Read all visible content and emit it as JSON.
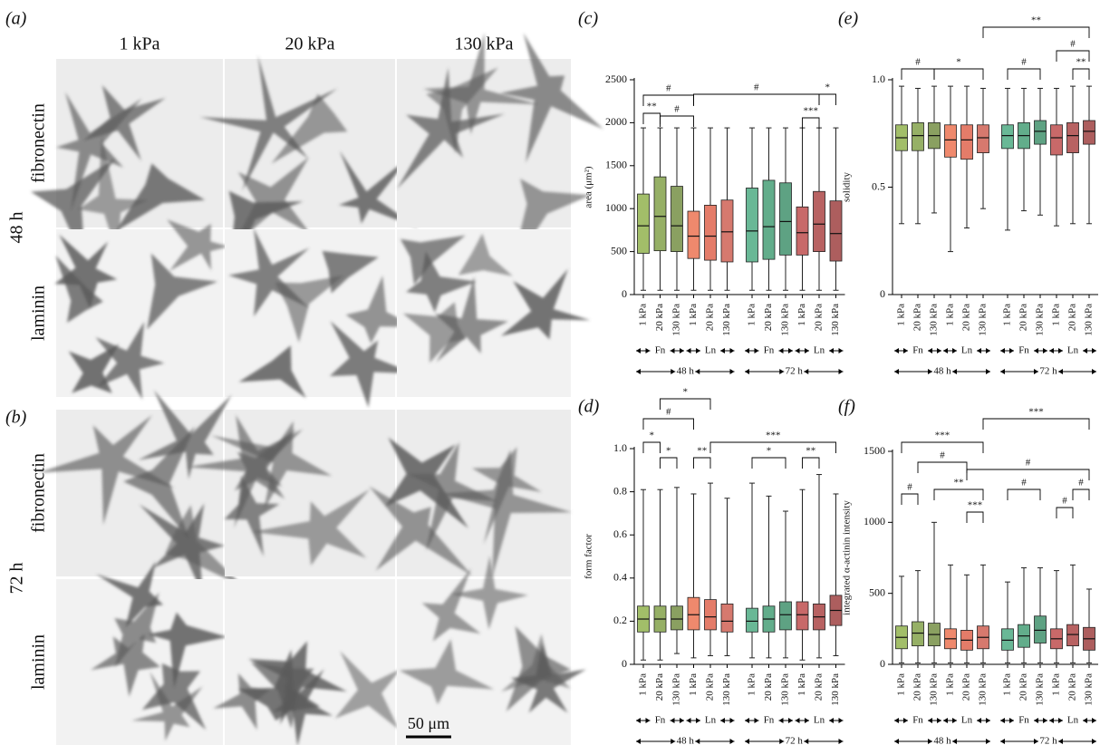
{
  "micrographs": {
    "columns": [
      "1 kPa",
      "20 kPa",
      "130 kPa"
    ],
    "panels": [
      {
        "label": "(a)",
        "time": "48 h",
        "rows": [
          "fibronectin",
          "laminin"
        ]
      },
      {
        "label": "(b)",
        "time": "72 h",
        "rows": [
          "fibronectin",
          "laminin"
        ]
      }
    ],
    "scale_bar": "50 μm"
  },
  "chart_data": [
    {
      "type": "box",
      "label": "(c)",
      "ylabel": "area (μm²)",
      "categories": [
        "1 kPa",
        "20 kPa",
        "130 kPa",
        "1 kPa",
        "20 kPa",
        "130 kPa",
        "1 kPa",
        "20 kPa",
        "130 kPa",
        "1 kPa",
        "20 kPa",
        "130 kPa"
      ],
      "groups": [
        "Fn",
        "Ln",
        "Fn",
        "Ln"
      ],
      "periods": [
        "48 h",
        "72 h"
      ],
      "colors": [
        "#7aa32a",
        "#6a8f25",
        "#58781e",
        "#e8572f",
        "#d8452a",
        "#c44030",
        "#2a9a6a",
        "#1f8a5a",
        "#1a7a4f",
        "#b02a2a",
        "#9a2020",
        "#8a1a1a"
      ],
      "min": [
        50,
        50,
        50,
        50,
        50,
        50,
        50,
        50,
        50,
        50,
        50,
        50
      ],
      "q1": [
        480,
        510,
        500,
        420,
        400,
        380,
        380,
        410,
        460,
        460,
        500,
        390
      ],
      "median": [
        800,
        910,
        800,
        680,
        680,
        730,
        740,
        790,
        850,
        720,
        820,
        710
      ],
      "q3": [
        1170,
        1370,
        1260,
        970,
        1040,
        1100,
        1240,
        1330,
        1300,
        1020,
        1200,
        1090
      ],
      "max": [
        1940,
        1940,
        1940,
        1940,
        1940,
        1940,
        1940,
        1940,
        1940,
        1940,
        1940,
        1940
      ],
      "ylim": [
        0,
        2500
      ],
      "yticks": [
        0,
        500,
        1000,
        1500,
        2000,
        2500
      ],
      "annotations": [
        "#",
        "**",
        "#",
        "#",
        "***",
        "*"
      ]
    },
    {
      "type": "box",
      "label": "(e)",
      "ylabel": "solidity",
      "categories": [
        "1 kPa",
        "20 kPa",
        "130 kPa",
        "1 kPa",
        "20 kPa",
        "130 kPa",
        "1 kPa",
        "20 kPa",
        "130 kPa",
        "1 kPa",
        "20 kPa",
        "130 kPa"
      ],
      "groups": [
        "Fn",
        "Ln",
        "Fn",
        "Ln"
      ],
      "periods": [
        "48 h",
        "72 h"
      ],
      "colors": [
        "#7aa32a",
        "#6a8f25",
        "#58781e",
        "#e8572f",
        "#d8452a",
        "#c44030",
        "#2a9a6a",
        "#1f8a5a",
        "#1a7a4f",
        "#b02a2a",
        "#9a2020",
        "#8a1a1a"
      ],
      "min": [
        0.33,
        0.33,
        0.38,
        0.2,
        0.31,
        0.4,
        0.3,
        0.39,
        0.37,
        0.32,
        0.33,
        0.33
      ],
      "q1": [
        0.67,
        0.67,
        0.68,
        0.64,
        0.63,
        0.66,
        0.68,
        0.68,
        0.7,
        0.65,
        0.66,
        0.7
      ],
      "median": [
        0.73,
        0.74,
        0.74,
        0.72,
        0.72,
        0.73,
        0.74,
        0.74,
        0.76,
        0.73,
        0.74,
        0.76
      ],
      "q3": [
        0.79,
        0.8,
        0.8,
        0.79,
        0.79,
        0.79,
        0.79,
        0.8,
        0.81,
        0.79,
        0.8,
        0.81
      ],
      "max": [
        0.97,
        0.96,
        0.97,
        0.97,
        0.97,
        0.96,
        0.96,
        0.96,
        0.96,
        0.96,
        0.97,
        0.97
      ],
      "ylim": [
        0,
        1
      ],
      "yticks": [
        0,
        0.5,
        {
          "value": 1,
          "label": "1.0"
        }
      ],
      "annotations": [
        "**",
        "#",
        "*",
        "#",
        "#",
        "**"
      ]
    },
    {
      "type": "box",
      "label": "(d)",
      "ylabel": "form factor",
      "categories": [
        "1 kPa",
        "20 kPa",
        "130 kPa",
        "1 kPa",
        "20 kPa",
        "130 kPa",
        "1 kPa",
        "20 kPa",
        "130 kPa",
        "1 kPa",
        "20 kPa",
        "130 kPa"
      ],
      "groups": [
        "Fn",
        "Ln",
        "Fn",
        "Ln"
      ],
      "periods": [
        "48 h",
        "72 h"
      ],
      "colors": [
        "#7aa32a",
        "#6a8f25",
        "#58781e",
        "#e8572f",
        "#d8452a",
        "#c44030",
        "#2a9a6a",
        "#1f8a5a",
        "#1a7a4f",
        "#b02a2a",
        "#9a2020",
        "#8a1a1a"
      ],
      "min": [
        0.02,
        0.02,
        0.05,
        0.03,
        0.04,
        0.04,
        0.03,
        0.03,
        0.03,
        0.02,
        0.03,
        0.04
      ],
      "q1": [
        0.15,
        0.15,
        0.16,
        0.16,
        0.16,
        0.15,
        0.15,
        0.15,
        0.16,
        0.16,
        0.16,
        0.18
      ],
      "median": [
        0.21,
        0.21,
        0.21,
        0.23,
        0.22,
        0.2,
        0.2,
        0.21,
        0.23,
        0.23,
        0.22,
        0.25
      ],
      "q3": [
        0.27,
        0.27,
        0.27,
        0.31,
        0.3,
        0.28,
        0.26,
        0.27,
        0.29,
        0.29,
        0.28,
        0.32
      ],
      "max": [
        0.81,
        0.81,
        0.82,
        0.79,
        0.84,
        0.77,
        0.84,
        0.78,
        0.71,
        0.81,
        0.88,
        0.79
      ],
      "ylim": [
        0,
        1
      ],
      "yticks": [
        0,
        0.2,
        0.4,
        0.6,
        0.8,
        {
          "value": 1,
          "label": "1.0"
        }
      ],
      "annotations": [
        "*",
        "#",
        "*",
        "*",
        "**",
        "***",
        "*",
        "**"
      ]
    },
    {
      "type": "box",
      "label": "(f)",
      "ylabel": "integrated α-actinin intensity",
      "categories": [
        "1 kPa",
        "20 kPa",
        "130 kPa",
        "1 kPa",
        "20 kPa",
        "130 kPa",
        "1 kPa",
        "20 kPa",
        "130 kPa",
        "1 kPa",
        "20 kPa",
        "130 kPa"
      ],
      "groups": [
        "Fn",
        "Ln",
        "Fn",
        "Ln"
      ],
      "periods": [
        "48 h",
        "72 h"
      ],
      "colors": [
        "#7aa32a",
        "#6a8f25",
        "#58781e",
        "#e8572f",
        "#d8452a",
        "#c44030",
        "#2a9a6a",
        "#1f8a5a",
        "#1a7a4f",
        "#b02a2a",
        "#9a2020",
        "#8a1a1a"
      ],
      "min": [
        10,
        10,
        10,
        10,
        10,
        10,
        10,
        10,
        10,
        10,
        10,
        10
      ],
      "q1": [
        110,
        130,
        130,
        110,
        100,
        110,
        100,
        120,
        150,
        110,
        130,
        100
      ],
      "median": [
        190,
        220,
        210,
        180,
        170,
        190,
        170,
        200,
        240,
        180,
        210,
        180
      ],
      "q3": [
        270,
        300,
        290,
        250,
        240,
        270,
        250,
        280,
        340,
        250,
        280,
        260
      ],
      "max": [
        620,
        660,
        1000,
        700,
        630,
        700,
        580,
        680,
        680,
        660,
        700,
        530
      ],
      "ylim": [
        0,
        1500
      ],
      "yticks": [
        0,
        500,
        1000,
        1500
      ],
      "annotations": [
        "***",
        "***",
        "#",
        "#",
        "#",
        "**",
        "***",
        "#",
        "#",
        "#"
      ]
    }
  ]
}
